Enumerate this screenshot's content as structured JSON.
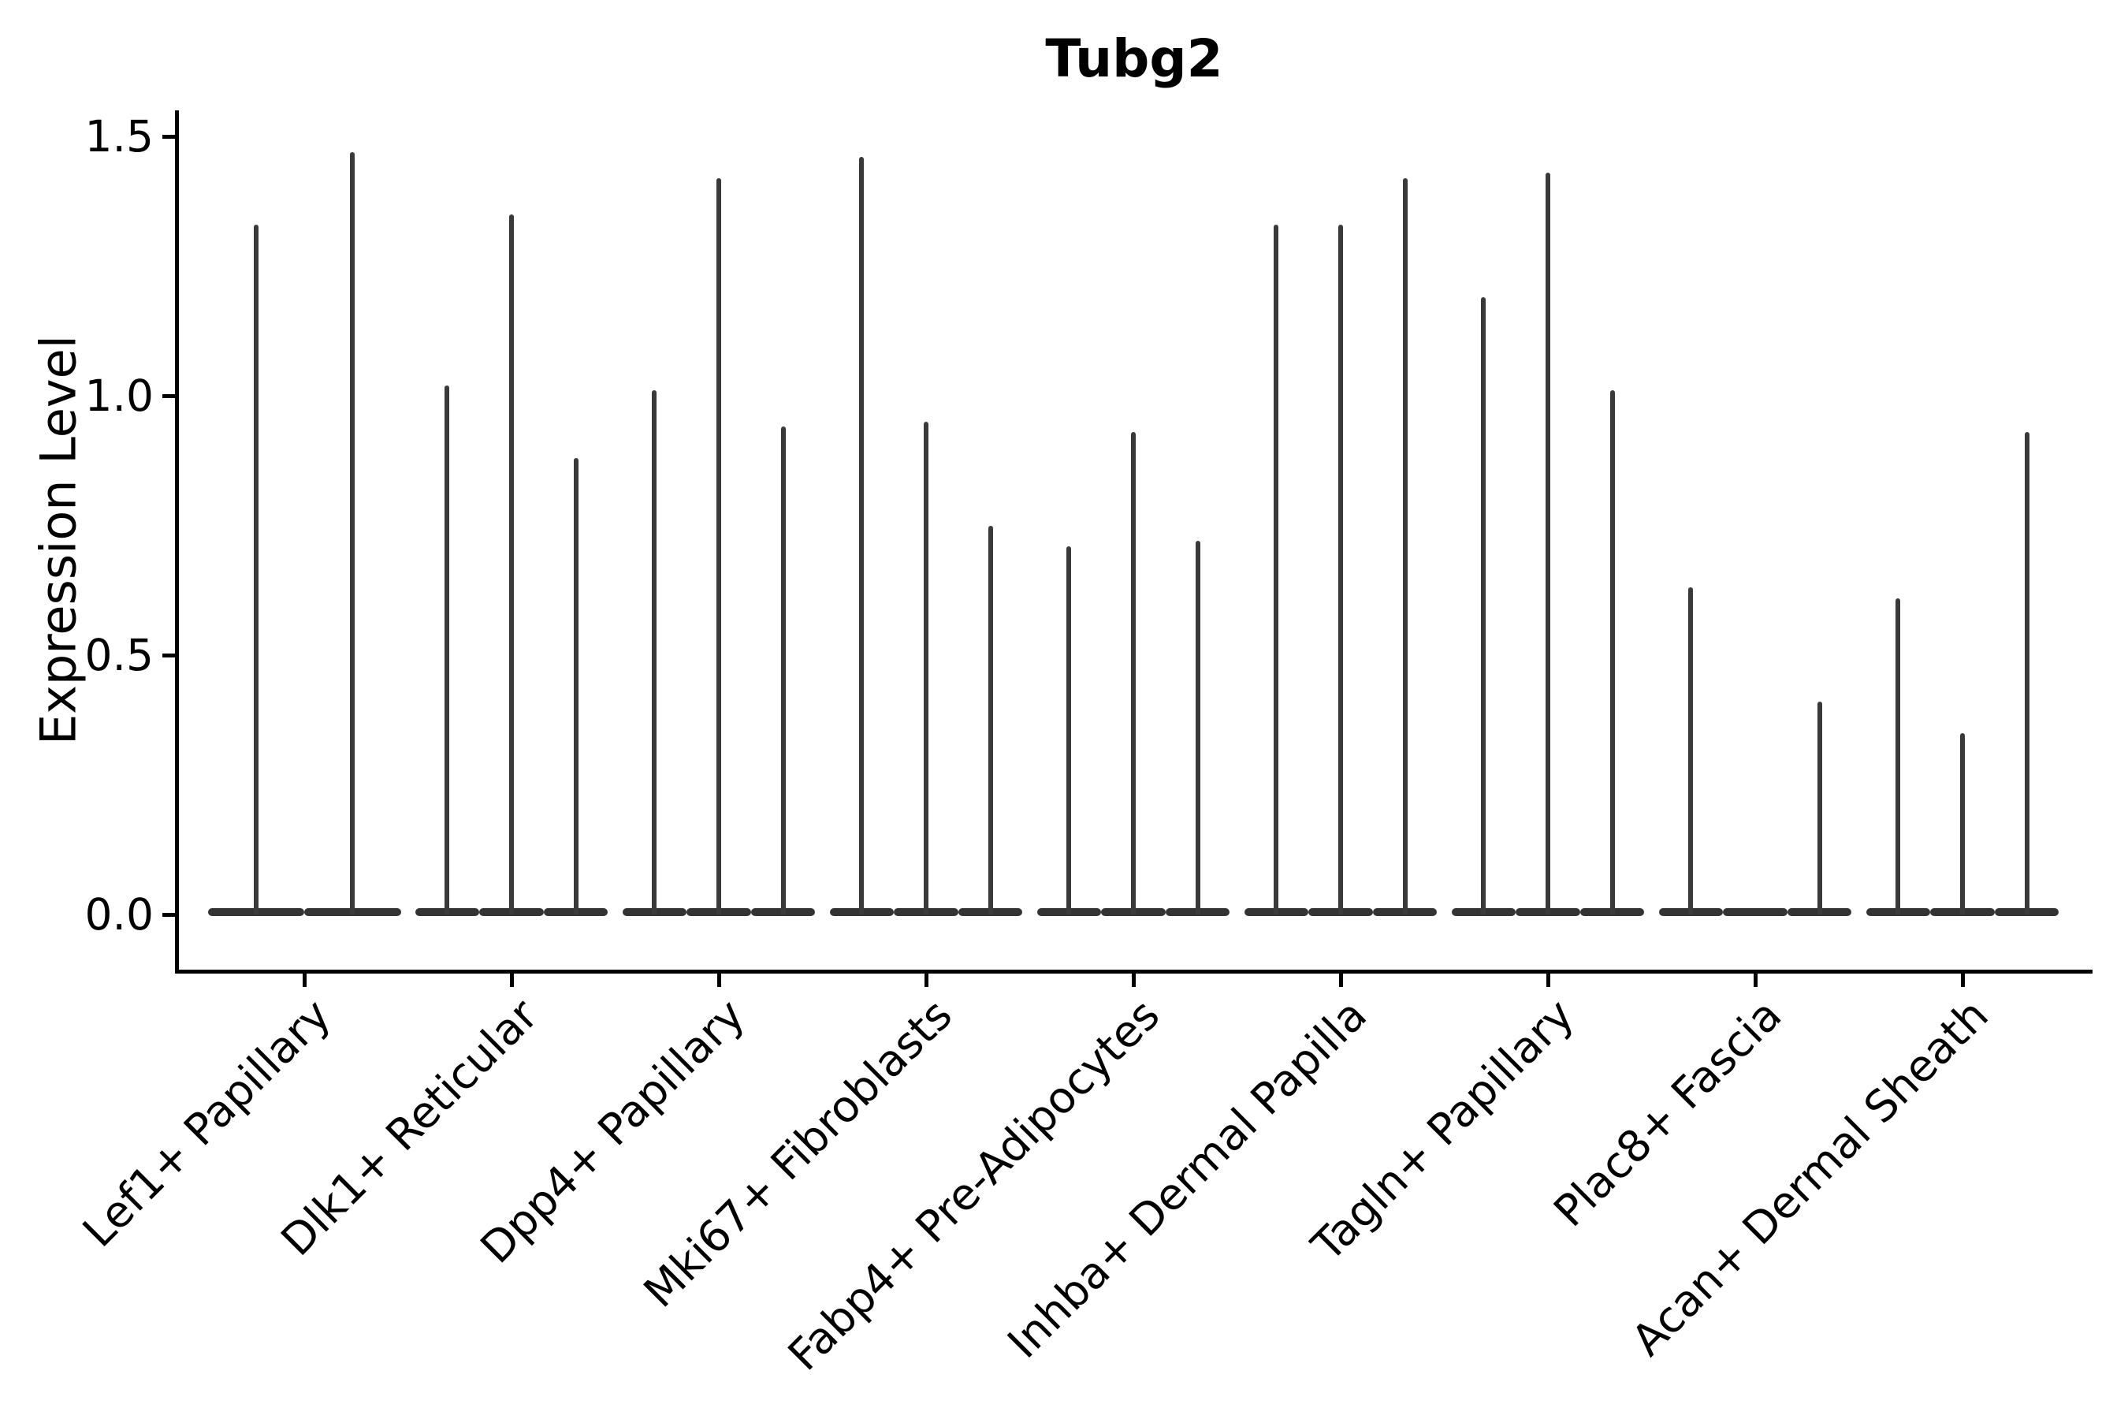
{
  "chart_data": {
    "type": "violin",
    "title": "Tubg2",
    "ylabel": "Expression Level",
    "xlabel": "",
    "yticks": [
      0.0,
      0.5,
      1.0,
      1.5
    ],
    "ytick_labels": [
      "0.0",
      "0.5",
      "1.0",
      "1.5"
    ],
    "ylim": [
      -0.11,
      1.55
    ],
    "grid": false,
    "legend": "none",
    "note": "Stacked-violin style single-cell expression plot; each category shows 2-3 ultra-thin violins (wide flat base of zero-expression cells, thin spike up to max expressing cell).",
    "categories": [
      "Lef1+ Papillary",
      "Dlk1+ Reticular",
      "Dpp4+ Papillary",
      "Mki67+ Fibroblasts",
      "Fabp4+ Pre-Adipocytes",
      "Inhba+ Dermal Papilla",
      "Tagln+ Papillary",
      "Plac8+ Fascia",
      "Acan+ Dermal Sheath"
    ],
    "violins": [
      {
        "category": "Lef1+ Papillary",
        "spike_maxima": [
          1.33,
          1.47
        ]
      },
      {
        "category": "Dlk1+ Reticular",
        "spike_maxima": [
          1.02,
          1.35,
          0.88
        ]
      },
      {
        "category": "Dpp4+ Papillary",
        "spike_maxima": [
          1.01,
          1.42,
          0.94
        ]
      },
      {
        "category": "Mki67+ Fibroblasts",
        "spike_maxima": [
          1.46,
          0.95,
          0.75
        ]
      },
      {
        "category": "Fabp4+ Pre-Adipocytes",
        "spike_maxima": [
          0.71,
          0.93,
          0.72
        ]
      },
      {
        "category": "Inhba+ Dermal Papilla",
        "spike_maxima": [
          1.33,
          1.33,
          1.42
        ]
      },
      {
        "category": "Tagln+ Papillary",
        "spike_maxima": [
          1.19,
          1.43,
          1.01
        ]
      },
      {
        "category": "Plac8+ Fascia",
        "spike_maxima": [
          0.63,
          0.0,
          0.41
        ]
      },
      {
        "category": "Acan+ Dermal Sheath",
        "spike_maxima": [
          0.61,
          0.35,
          0.93
        ]
      }
    ],
    "colors": {
      "violin_ink": "#3a3a3a",
      "violin_base_ink": "#333333",
      "axis_ink": "#000000",
      "background": "#ffffff"
    }
  }
}
